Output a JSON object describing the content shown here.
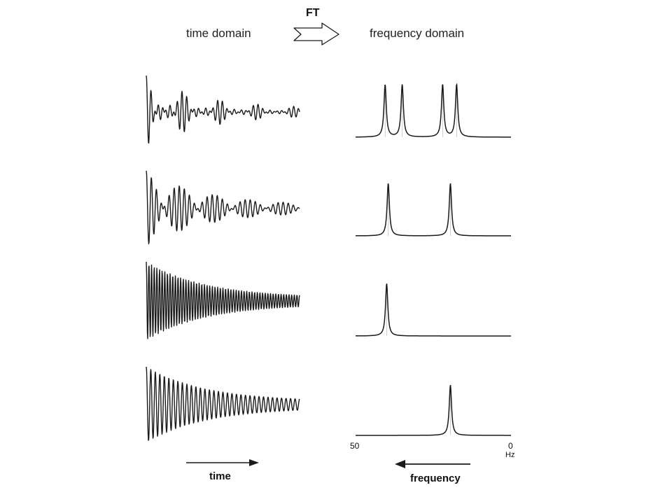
{
  "headings": {
    "time_domain": "time domain",
    "ft": "FT",
    "frequency_domain": "frequency domain"
  },
  "axes": {
    "time_label": "time",
    "frequency_label": "frequency",
    "freq_left_tick": "50",
    "freq_right_tick": "0",
    "freq_unit": "Hz"
  },
  "icons": {
    "ft_arrow": "hollow-right-arrow-icon",
    "time_arrow": "right-arrow-icon",
    "frequency_arrow": "left-arrow-icon"
  },
  "rows": [
    {
      "row": 1,
      "fid_components": 4,
      "peaks_hz": [
        40.5,
        35.0,
        22.0,
        17.5
      ]
    },
    {
      "row": 2,
      "fid_components": 2,
      "peaks_hz": [
        39.5,
        19.5
      ]
    },
    {
      "row": 3,
      "fid_components": 1,
      "peaks_hz": [
        40.0
      ]
    },
    {
      "row": 4,
      "fid_components": 1,
      "peaks_hz": [
        19.5
      ]
    }
  ],
  "colors": {
    "ink": "#1a1a1a",
    "background": "#ffffff"
  }
}
